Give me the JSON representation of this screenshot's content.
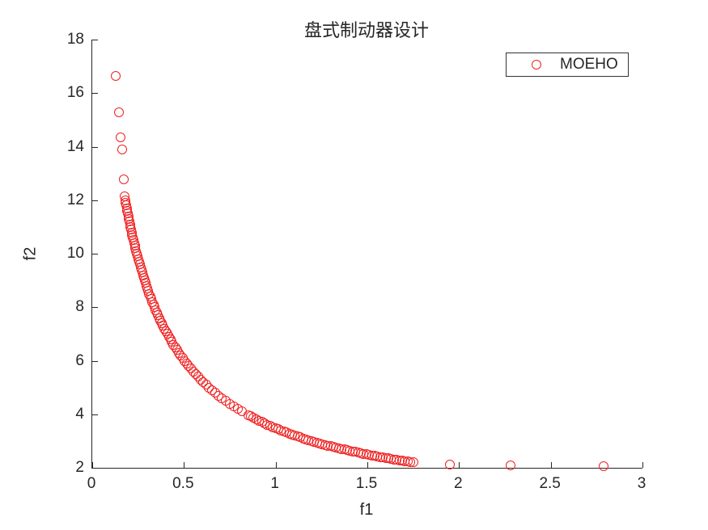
{
  "figure": {
    "title": "盘式制动器设计",
    "xlabel": "f1",
    "ylabel": "f2",
    "background_color": "#ffffff",
    "axis_color": "#262626",
    "legend": {
      "label": "MOEHO",
      "marker_icon": "red-circle-icon",
      "marker_color": "#ef2020"
    }
  },
  "chart_data": {
    "type": "scatter",
    "title": "盘式制动器设计",
    "xlabel": "f1",
    "ylabel": "f2",
    "xlim": [
      0,
      3
    ],
    "ylim": [
      2,
      18
    ],
    "xticks": [
      0,
      0.5,
      1,
      1.5,
      2,
      2.5,
      3
    ],
    "xtick_labels": [
      "0",
      "0.5",
      "1",
      "1.5",
      "2",
      "2.5",
      "3"
    ],
    "yticks": [
      2,
      4,
      6,
      8,
      10,
      12,
      14,
      16,
      18
    ],
    "ytick_labels": [
      "2",
      "4",
      "6",
      "8",
      "10",
      "12",
      "14",
      "16",
      "18"
    ],
    "grid": false,
    "box": "left-bottom-only",
    "tick_direction": "in",
    "legend_position": "top-right",
    "series": [
      {
        "name": "MOEHO",
        "marker": "open-circle",
        "color": "#ef2020",
        "points": [
          [
            0.128,
            16.65
          ],
          [
            0.146,
            15.28
          ],
          [
            0.155,
            14.35
          ],
          [
            0.163,
            13.88
          ],
          [
            0.172,
            12.78
          ],
          [
            0.178,
            12.15
          ],
          [
            0.18,
            12.0
          ],
          [
            0.183,
            11.9
          ],
          [
            0.185,
            11.8
          ],
          [
            0.188,
            11.7
          ],
          [
            0.191,
            11.6
          ],
          [
            0.194,
            11.5
          ],
          [
            0.197,
            11.4
          ],
          [
            0.2,
            11.3
          ],
          [
            0.203,
            11.2
          ],
          [
            0.206,
            11.1
          ],
          [
            0.209,
            11.0
          ],
          [
            0.212,
            10.9
          ],
          [
            0.215,
            10.8
          ],
          [
            0.218,
            10.7
          ],
          [
            0.222,
            10.6
          ],
          [
            0.225,
            10.5
          ],
          [
            0.229,
            10.4
          ],
          [
            0.232,
            10.3
          ],
          [
            0.236,
            10.2
          ],
          [
            0.24,
            10.1
          ],
          [
            0.243,
            10.0
          ],
          [
            0.247,
            9.9
          ],
          [
            0.251,
            9.8
          ],
          [
            0.255,
            9.7
          ],
          [
            0.259,
            9.6
          ],
          [
            0.264,
            9.5
          ],
          [
            0.268,
            9.4
          ],
          [
            0.272,
            9.3
          ],
          [
            0.277,
            9.2
          ],
          [
            0.281,
            9.1
          ],
          [
            0.286,
            9.0
          ],
          [
            0.291,
            8.9
          ],
          [
            0.296,
            8.8
          ],
          [
            0.301,
            8.7
          ],
          [
            0.306,
            8.6
          ],
          [
            0.311,
            8.5
          ],
          [
            0.317,
            8.4
          ],
          [
            0.322,
            8.3
          ],
          [
            0.328,
            8.2
          ],
          [
            0.334,
            8.1
          ],
          [
            0.34,
            8.0
          ],
          [
            0.346,
            7.9
          ],
          [
            0.352,
            7.8
          ],
          [
            0.359,
            7.7
          ],
          [
            0.365,
            7.6
          ],
          [
            0.372,
            7.5
          ],
          [
            0.379,
            7.4
          ],
          [
            0.386,
            7.3
          ],
          [
            0.394,
            7.2
          ],
          [
            0.401,
            7.1
          ],
          [
            0.409,
            7.0
          ],
          [
            0.417,
            6.9
          ],
          [
            0.426,
            6.8
          ],
          [
            0.434,
            6.7
          ],
          [
            0.443,
            6.6
          ],
          [
            0.453,
            6.5
          ],
          [
            0.462,
            6.4
          ],
          [
            0.472,
            6.3
          ],
          [
            0.482,
            6.2
          ],
          [
            0.492,
            6.1
          ],
          [
            0.503,
            6.0
          ],
          [
            0.515,
            5.9
          ],
          [
            0.526,
            5.8
          ],
          [
            0.538,
            5.7
          ],
          [
            0.551,
            5.6
          ],
          [
            0.564,
            5.5
          ],
          [
            0.577,
            5.4
          ],
          [
            0.591,
            5.3
          ],
          [
            0.606,
            5.2
          ],
          [
            0.621,
            5.1
          ],
          [
            0.637,
            5.0
          ],
          [
            0.654,
            4.9
          ],
          [
            0.671,
            4.8
          ],
          [
            0.689,
            4.7
          ],
          [
            0.708,
            4.6
          ],
          [
            0.728,
            4.5
          ],
          [
            0.748,
            4.4
          ],
          [
            0.77,
            4.3
          ],
          [
            0.793,
            4.2
          ],
          [
            0.817,
            4.1
          ],
          [
            0.85,
            3.97
          ],
          [
            0.865,
            3.92
          ],
          [
            0.88,
            3.86
          ],
          [
            0.895,
            3.81
          ],
          [
            0.91,
            3.76
          ],
          [
            0.925,
            3.71
          ],
          [
            0.94,
            3.66
          ],
          [
            0.955,
            3.61
          ],
          [
            0.97,
            3.57
          ],
          [
            0.985,
            3.52
          ],
          [
            1.0,
            3.48
          ],
          [
            1.015,
            3.44
          ],
          [
            1.03,
            3.4
          ],
          [
            1.045,
            3.36
          ],
          [
            1.06,
            3.32
          ],
          [
            1.075,
            3.28
          ],
          [
            1.09,
            3.24
          ],
          [
            1.105,
            3.21
          ],
          [
            1.12,
            3.17
          ],
          [
            1.135,
            3.14
          ],
          [
            1.15,
            3.1
          ],
          [
            1.165,
            3.07
          ],
          [
            1.18,
            3.04
          ],
          [
            1.195,
            3.01
          ],
          [
            1.21,
            2.98
          ],
          [
            1.225,
            2.95
          ],
          [
            1.24,
            2.92
          ],
          [
            1.255,
            2.89
          ],
          [
            1.27,
            2.86
          ],
          [
            1.285,
            2.83
          ],
          [
            1.3,
            2.81
          ],
          [
            1.315,
            2.78
          ],
          [
            1.33,
            2.75
          ],
          [
            1.345,
            2.73
          ],
          [
            1.36,
            2.7
          ],
          [
            1.375,
            2.68
          ],
          [
            1.39,
            2.66
          ],
          [
            1.405,
            2.63
          ],
          [
            1.42,
            2.61
          ],
          [
            1.435,
            2.59
          ],
          [
            1.45,
            2.57
          ],
          [
            1.465,
            2.54
          ],
          [
            1.48,
            2.52
          ],
          [
            1.495,
            2.5
          ],
          [
            1.51,
            2.48
          ],
          [
            1.525,
            2.46
          ],
          [
            1.54,
            2.44
          ],
          [
            1.555,
            2.42
          ],
          [
            1.57,
            2.4
          ],
          [
            1.585,
            2.39
          ],
          [
            1.6,
            2.37
          ],
          [
            1.615,
            2.35
          ],
          [
            1.63,
            2.33
          ],
          [
            1.645,
            2.31
          ],
          [
            1.66,
            2.3
          ],
          [
            1.675,
            2.28
          ],
          [
            1.69,
            2.26
          ],
          [
            1.705,
            2.25
          ],
          [
            1.72,
            2.23
          ],
          [
            1.735,
            2.22
          ],
          [
            1.75,
            2.2
          ],
          [
            1.95,
            2.12
          ],
          [
            2.28,
            2.08
          ],
          [
            2.79,
            2.05
          ]
        ]
      }
    ]
  }
}
